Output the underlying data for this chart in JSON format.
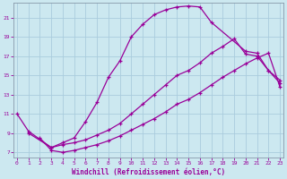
{
  "xlabel": "Windchill (Refroidissement éolien,°C)",
  "bg_color": "#cce8f0",
  "grid_color": "#aaccdd",
  "line_color": "#990099",
  "xmin": 0,
  "xmax": 23,
  "ymin": 7,
  "ymax": 22,
  "yticks": [
    7,
    9,
    11,
    13,
    15,
    17,
    19,
    21
  ],
  "xticks": [
    0,
    1,
    2,
    3,
    4,
    5,
    6,
    7,
    8,
    9,
    10,
    11,
    12,
    13,
    14,
    15,
    16,
    17,
    18,
    19,
    20,
    21,
    22,
    23
  ],
  "line1_x": [
    0,
    1,
    3,
    4,
    5,
    6,
    7,
    8,
    9,
    10,
    11,
    12,
    13,
    14,
    15,
    16,
    17,
    20,
    21,
    22,
    23
  ],
  "line1_y": [
    11,
    9.2,
    7.5,
    8.0,
    8.5,
    10.2,
    12.2,
    14.8,
    16.5,
    19.0,
    20.3,
    21.3,
    21.8,
    22.1,
    22.2,
    22.1,
    20.5,
    17.5,
    17.3,
    15.5,
    14.2
  ],
  "line2_x": [
    1,
    3,
    4,
    5,
    6,
    7,
    8,
    9,
    10,
    11,
    12,
    13,
    14,
    15,
    16,
    17,
    18,
    19,
    20,
    21,
    22,
    23
  ],
  "line2_y": [
    9.0,
    7.5,
    7.8,
    8.0,
    8.3,
    8.8,
    9.3,
    10.0,
    11.0,
    12.0,
    13.0,
    14.0,
    15.0,
    15.5,
    16.3,
    17.3,
    18.0,
    18.8,
    17.2,
    17.0,
    15.5,
    14.5
  ],
  "line3_x": [
    2,
    3,
    4,
    5,
    6,
    7,
    8,
    9,
    10,
    11,
    12,
    13,
    14,
    15,
    16,
    17,
    18,
    19,
    20,
    21,
    22,
    23
  ],
  "line3_y": [
    8.5,
    7.2,
    7.0,
    7.2,
    7.5,
    7.8,
    8.2,
    8.7,
    9.3,
    9.9,
    10.5,
    11.2,
    12.0,
    12.5,
    13.2,
    14.0,
    14.8,
    15.5,
    16.2,
    16.8,
    17.3,
    13.8
  ]
}
